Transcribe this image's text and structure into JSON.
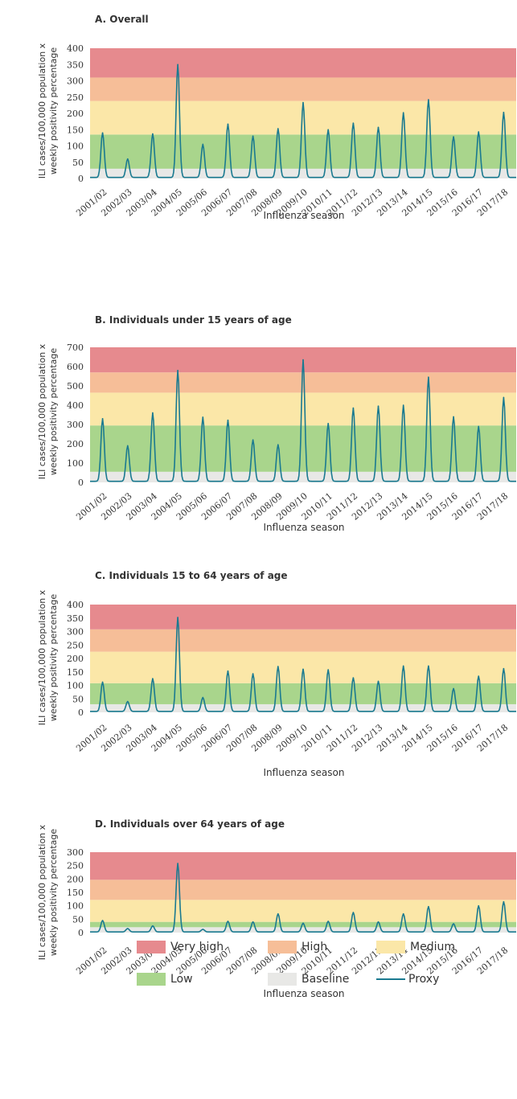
{
  "chart_data": [
    {
      "type": "line",
      "title": "A. Overall",
      "xlabel": "Influenza season",
      "ylabel": [
        "ILI cases/100,000 population x",
        "weekly positivity percentage"
      ],
      "ylim": [
        0,
        400
      ],
      "yticks": [
        0,
        50,
        100,
        150,
        200,
        250,
        300,
        350,
        400
      ],
      "thresholds": {
        "baseline": 30,
        "low": 135,
        "medium": 238,
        "high": 310,
        "very_high": 400
      },
      "categories": [
        "2001/02",
        "2002/03",
        "2003/04",
        "2004/05",
        "2005/06",
        "2006/07",
        "2007/08",
        "2008/09",
        "2009/10",
        "2010/11",
        "2011/12",
        "2012/13",
        "2013/14",
        "2014/15",
        "2015/16",
        "2016/17",
        "2017/18"
      ],
      "series": [
        {
          "name": "Proxy",
          "values": [
            140,
            60,
            137,
            350,
            105,
            167,
            130,
            153,
            233,
            150,
            170,
            157,
            202,
            242,
            128,
            143,
            203
          ]
        }
      ]
    },
    {
      "type": "line",
      "title": "B. Individuals under 15 years of age",
      "xlabel": "Influenza season",
      "ylabel": [
        "ILI cases/100,000 population x",
        "weekly positivity percentage"
      ],
      "ylim": [
        0,
        700
      ],
      "yticks": [
        0,
        100,
        200,
        300,
        400,
        500,
        600,
        700
      ],
      "thresholds": {
        "baseline": 55,
        "low": 295,
        "medium": 465,
        "high": 570,
        "very_high": 700
      },
      "categories": [
        "2001/02",
        "2002/03",
        "2003/04",
        "2004/05",
        "2005/06",
        "2006/07",
        "2007/08",
        "2008/09",
        "2009/10",
        "2010/11",
        "2011/12",
        "2012/13",
        "2013/14",
        "2014/15",
        "2015/16",
        "2016/17",
        "2017/18"
      ],
      "series": [
        {
          "name": "Proxy",
          "values": [
            330,
            190,
            360,
            580,
            338,
            322,
            220,
            195,
            635,
            305,
            385,
            395,
            400,
            545,
            340,
            290,
            440
          ]
        }
      ]
    },
    {
      "type": "line",
      "title": "C. Individuals 15 to 64 years of age",
      "xlabel": "Influenza season",
      "ylabel": [
        "ILI cases/100,000 population x",
        "weekly positivity percentage"
      ],
      "ylim": [
        0,
        400
      ],
      "yticks": [
        0,
        50,
        100,
        150,
        200,
        250,
        300,
        350,
        400
      ],
      "thresholds": {
        "baseline": 30,
        "low": 108,
        "medium": 225,
        "high": 308,
        "very_high": 400
      },
      "categories": [
        "2001/02",
        "2002/03",
        "2003/04",
        "2004/05",
        "2005/06",
        "2006/07",
        "2007/08",
        "2008/09",
        "2009/10",
        "2010/11",
        "2011/12",
        "2012/13",
        "2013/14",
        "2014/15",
        "2015/16",
        "2016/17",
        "2017/18"
      ],
      "series": [
        {
          "name": "Proxy",
          "values": [
            112,
            40,
            125,
            352,
            55,
            153,
            143,
            170,
            160,
            158,
            128,
            115,
            172,
            172,
            88,
            134,
            162
          ]
        }
      ]
    },
    {
      "type": "line",
      "title": "D. Individuals over 64 years of age",
      "xlabel": "Influenza season",
      "ylabel": [
        "ILI cases/100,000 population x",
        "weekly positivity percentage"
      ],
      "ylim": [
        0,
        300
      ],
      "yticks": [
        0,
        50,
        100,
        150,
        200,
        250,
        300
      ],
      "thresholds": {
        "baseline": 20,
        "low": 40,
        "medium": 122,
        "high": 197,
        "very_high": 300
      },
      "categories": [
        "2001/02",
        "2002/03",
        "2003/04",
        "2004/05",
        "2005/06",
        "2006/07",
        "2007/08",
        "2008/09",
        "2009/10",
        "2010/11",
        "2011/12",
        "2012/13",
        "2013/14",
        "2014/15",
        "2015/16",
        "2016/17",
        "2017/18"
      ],
      "series": [
        {
          "name": "Proxy",
          "values": [
            45,
            15,
            25,
            258,
            12,
            42,
            40,
            70,
            35,
            42,
            75,
            40,
            70,
            97,
            33,
            100,
            115
          ]
        }
      ]
    }
  ],
  "legend": {
    "very_high": "Very high",
    "high": "High",
    "medium": "Medium",
    "low": "Low",
    "baseline": "Baseline",
    "proxy": "Proxy"
  },
  "colors": {
    "very_high": "#e68a8e",
    "high": "#f6be98",
    "medium": "#fbe7a8",
    "low": "#a9d58c",
    "baseline": "#e8e8e6",
    "proxy": "#1a7a90",
    "text": "#333333"
  }
}
